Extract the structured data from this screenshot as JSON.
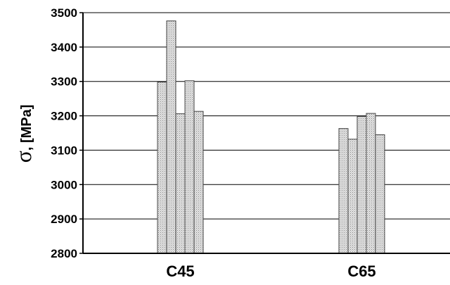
{
  "chart_data": {
    "type": "bar",
    "title": "",
    "xlabel": "",
    "ylabel_symbol": "σ",
    "ylabel_unit": ", [MPa]",
    "ylim": [
      2800,
      3500
    ],
    "yticks": [
      2800,
      2900,
      3000,
      3100,
      3200,
      3300,
      3400,
      3500
    ],
    "grid": true,
    "legend": "none",
    "bar_fill": "#d9d9d9",
    "bar_stroke": "#444444",
    "categories": [
      {
        "label": "C45",
        "values": [
          3298,
          3476,
          3206,
          3302,
          3213
        ]
      },
      {
        "label": "C65",
        "values": [
          3163,
          3132,
          3198,
          3207,
          3145
        ]
      }
    ]
  }
}
